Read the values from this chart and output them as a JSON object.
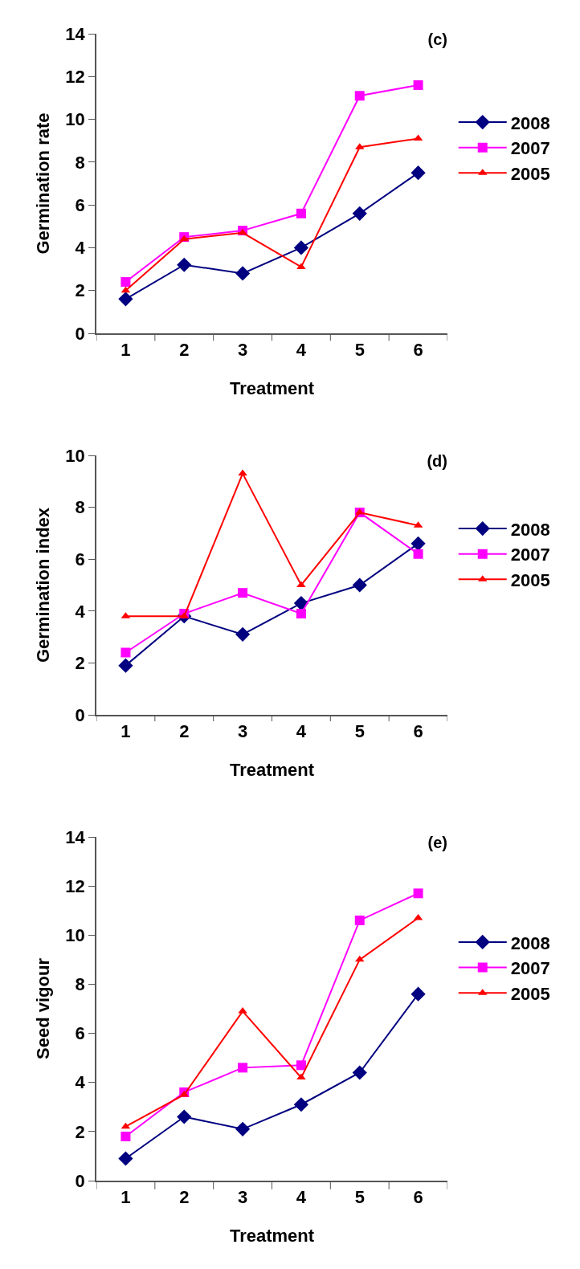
{
  "chart_data": [
    {
      "type": "line",
      "title": "(c)",
      "xlabel": "Treatment",
      "ylabel": "Germination rate",
      "categories": [
        "1",
        "2",
        "3",
        "4",
        "5",
        "6"
      ],
      "ylim": [
        0,
        14
      ],
      "yticks": [
        0,
        2,
        4,
        6,
        8,
        10,
        12,
        14
      ],
      "grid": false,
      "legend": "right",
      "series": [
        {
          "name": "2008",
          "color": "#000080",
          "marker": "diamond",
          "values": [
            1.6,
            3.2,
            2.8,
            4.0,
            5.6,
            7.5
          ]
        },
        {
          "name": "2007",
          "color": "#ff00ff",
          "marker": "square",
          "values": [
            2.4,
            4.5,
            4.8,
            5.6,
            11.1,
            11.6
          ]
        },
        {
          "name": "2005",
          "color": "#ff0000",
          "marker": "triangle",
          "values": [
            2.0,
            4.4,
            4.7,
            3.1,
            8.7,
            9.1
          ]
        }
      ]
    },
    {
      "type": "line",
      "title": "(d)",
      "xlabel": "Treatment",
      "ylabel": "Germination index",
      "categories": [
        "1",
        "2",
        "3",
        "4",
        "5",
        "6"
      ],
      "ylim": [
        0,
        10
      ],
      "yticks": [
        0,
        2,
        4,
        6,
        8,
        10
      ],
      "grid": false,
      "legend": "right",
      "series": [
        {
          "name": "2008",
          "color": "#000080",
          "marker": "diamond",
          "values": [
            1.9,
            3.8,
            3.1,
            4.3,
            5.0,
            6.6
          ]
        },
        {
          "name": "2007",
          "color": "#ff00ff",
          "marker": "square",
          "values": [
            2.4,
            3.9,
            4.7,
            3.9,
            7.8,
            6.2
          ]
        },
        {
          "name": "2005",
          "color": "#ff0000",
          "marker": "triangle",
          "values": [
            3.8,
            3.8,
            9.3,
            5.0,
            7.8,
            7.3
          ]
        }
      ]
    },
    {
      "type": "line",
      "title": "(e)",
      "xlabel": "Treatment",
      "ylabel": "Seed vigour",
      "categories": [
        "1",
        "2",
        "3",
        "4",
        "5",
        "6"
      ],
      "ylim": [
        0,
        14
      ],
      "yticks": [
        0,
        2,
        4,
        6,
        8,
        10,
        12,
        14
      ],
      "grid": false,
      "legend": "right",
      "series": [
        {
          "name": "2008",
          "color": "#000080",
          "marker": "diamond",
          "values": [
            0.9,
            2.6,
            2.1,
            3.1,
            4.4,
            7.6
          ]
        },
        {
          "name": "2007",
          "color": "#ff00ff",
          "marker": "square",
          "values": [
            1.8,
            3.6,
            4.6,
            4.7,
            10.6,
            11.7
          ]
        },
        {
          "name": "2005",
          "color": "#ff0000",
          "marker": "triangle",
          "values": [
            2.2,
            3.5,
            6.9,
            4.2,
            9.0,
            10.7
          ]
        }
      ]
    }
  ]
}
